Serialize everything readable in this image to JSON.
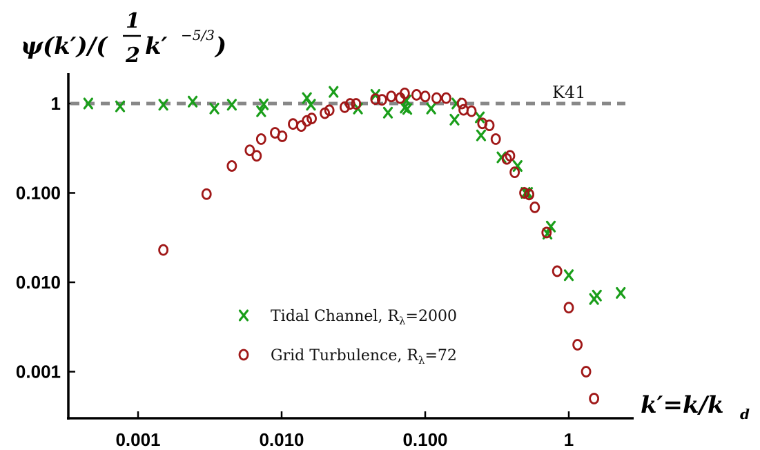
{
  "chart_data": {
    "type": "scatter",
    "xscale": "log",
    "yscale": "log",
    "xlim": [
      0.00032,
      3
    ],
    "ylim": [
      0.00025,
      2.2
    ],
    "xticks": [
      {
        "value": 0.001,
        "label": "0.001"
      },
      {
        "value": 0.01,
        "label": "0.010"
      },
      {
        "value": 0.1,
        "label": "0.100"
      },
      {
        "value": 1,
        "label": "1"
      }
    ],
    "yticks": [
      {
        "value": 0.001,
        "label": "0.001"
      },
      {
        "value": 0.01,
        "label": "0.010"
      },
      {
        "value": 0.1,
        "label": "0.100"
      },
      {
        "value": 1,
        "label": "1"
      }
    ],
    "reference_line": {
      "value": 1,
      "label": "K41",
      "color": "#888888",
      "style": "dashed"
    },
    "ylabel": {
      "main": "ψ(k′)/(",
      "frac_num": "1",
      "frac_den": "2",
      "k": "k′",
      "exponent": "−5/3",
      "close": ")"
    },
    "xlabel": {
      "main": "k′=k/k",
      "subscript": "d"
    },
    "legend_placement": "lower-center",
    "series": [
      {
        "name": "Tidal Channel, R",
        "name_subscript": "λ",
        "name_suffix": "=2000",
        "marker": "x",
        "color": "#1a9e1a",
        "points": [
          [
            0.00045,
            1.0
          ],
          [
            0.00075,
            0.93
          ],
          [
            0.0015,
            0.97
          ],
          [
            0.0024,
            1.05
          ],
          [
            0.0034,
            0.88
          ],
          [
            0.0045,
            0.97
          ],
          [
            0.0072,
            0.82
          ],
          [
            0.0075,
            0.98
          ],
          [
            0.015,
            1.15
          ],
          [
            0.016,
            0.97
          ],
          [
            0.023,
            1.35
          ],
          [
            0.034,
            0.88
          ],
          [
            0.045,
            1.25
          ],
          [
            0.055,
            0.79
          ],
          [
            0.072,
            0.9
          ],
          [
            0.074,
            1.08
          ],
          [
            0.075,
            0.87
          ],
          [
            0.11,
            0.88
          ],
          [
            0.16,
            0.66
          ],
          [
            0.165,
            1.0
          ],
          [
            0.24,
            0.7
          ],
          [
            0.245,
            0.44
          ],
          [
            0.34,
            0.25
          ],
          [
            0.44,
            0.2
          ],
          [
            0.5,
            0.1
          ],
          [
            0.52,
            0.1
          ],
          [
            0.71,
            0.035
          ],
          [
            0.75,
            0.042
          ],
          [
            1.0,
            0.012
          ],
          [
            1.5,
            0.0065
          ],
          [
            1.57,
            0.0071
          ],
          [
            2.3,
            0.0076
          ]
        ]
      },
      {
        "name": "Grid Turbulence, R",
        "name_subscript": "λ",
        "name_suffix": "=72",
        "marker": "o",
        "color": "#a01818",
        "points": [
          [
            0.0015,
            0.023
          ],
          [
            0.003,
            0.097
          ],
          [
            0.0045,
            0.2
          ],
          [
            0.006,
            0.3
          ],
          [
            0.0067,
            0.26
          ],
          [
            0.0072,
            0.4
          ],
          [
            0.009,
            0.47
          ],
          [
            0.0101,
            0.43
          ],
          [
            0.012,
            0.59
          ],
          [
            0.0137,
            0.56
          ],
          [
            0.015,
            0.64
          ],
          [
            0.0162,
            0.68
          ],
          [
            0.02,
            0.78
          ],
          [
            0.0215,
            0.84
          ],
          [
            0.0275,
            0.91
          ],
          [
            0.03,
            0.99
          ],
          [
            0.033,
            0.99
          ],
          [
            0.045,
            1.12
          ],
          [
            0.05,
            1.1
          ],
          [
            0.058,
            1.2
          ],
          [
            0.067,
            1.15
          ],
          [
            0.072,
            1.3
          ],
          [
            0.087,
            1.25
          ],
          [
            0.1,
            1.2
          ],
          [
            0.12,
            1.15
          ],
          [
            0.14,
            1.15
          ],
          [
            0.18,
            1.0
          ],
          [
            0.185,
            0.85
          ],
          [
            0.21,
            0.82
          ],
          [
            0.25,
            0.6
          ],
          [
            0.28,
            0.57
          ],
          [
            0.31,
            0.4
          ],
          [
            0.37,
            0.24
          ],
          [
            0.39,
            0.26
          ],
          [
            0.42,
            0.17
          ],
          [
            0.49,
            0.1
          ],
          [
            0.53,
            0.096
          ],
          [
            0.58,
            0.069
          ],
          [
            0.7,
            0.036
          ],
          [
            0.83,
            0.0133
          ],
          [
            1.0,
            0.0052
          ],
          [
            1.15,
            0.002
          ],
          [
            1.32,
            0.001
          ],
          [
            1.5,
            0.0005
          ]
        ]
      }
    ]
  }
}
